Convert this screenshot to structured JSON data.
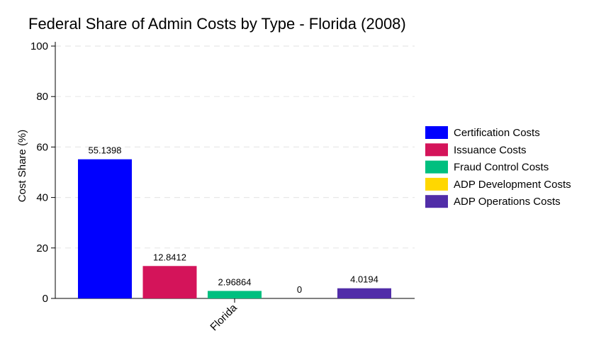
{
  "chart_data": {
    "type": "bar",
    "title": "Federal Share of Admin Costs by Type - Florida (2008)",
    "xlabel": "",
    "ylabel": "Cost Share (%)",
    "categories": [
      "Florida"
    ],
    "ylim": [
      0,
      100
    ],
    "yticks": [
      0,
      20,
      40,
      60,
      80,
      100
    ],
    "grid": true,
    "legend_position": "right",
    "series": [
      {
        "name": "Certification Costs",
        "color": "#0000ff",
        "values": [
          55.1398
        ],
        "label": "55.1398"
      },
      {
        "name": "Issuance Costs",
        "color": "#d4145a",
        "values": [
          12.8412
        ],
        "label": "12.8412"
      },
      {
        "name": "Fraud Control Costs",
        "color": "#00bf7f",
        "values": [
          2.96864
        ],
        "label": "2.96864"
      },
      {
        "name": "ADP Development Costs",
        "color": "#ffd700",
        "values": [
          0
        ],
        "label": "0"
      },
      {
        "name": "ADP Operations Costs",
        "color": "#512da8",
        "values": [
          4.0194
        ],
        "label": "4.0194"
      }
    ]
  }
}
